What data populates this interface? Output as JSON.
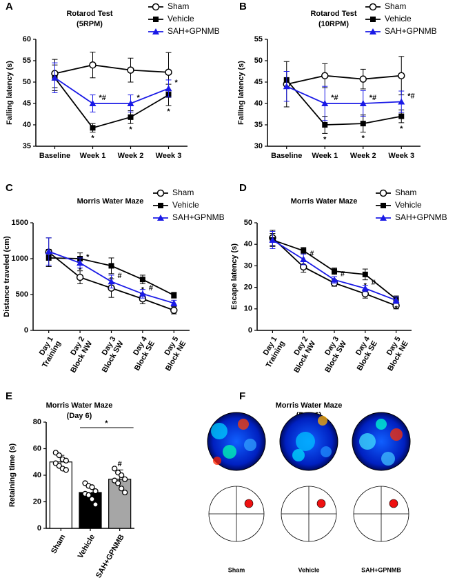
{
  "chart_data": [
    {
      "type": "line",
      "panel": "A",
      "title": "Rotarod Test",
      "subtitle": "(5RPM)",
      "y_label": "Falling latency (s)",
      "categories": [
        "Baseline",
        "Week 1",
        "Week 2",
        "Week 3"
      ],
      "ylim": [
        35,
        60
      ],
      "yticks": [
        35,
        40,
        45,
        50,
        55,
        60
      ],
      "legend": "top-right",
      "series": [
        {
          "name": "Sham",
          "color": "#000000",
          "marker": "circle-open",
          "values": [
            52,
            54,
            52.8,
            52.3
          ],
          "errors": [
            3.3,
            3,
            2.8,
            4.6
          ],
          "labels": [
            null,
            null,
            null,
            null
          ]
        },
        {
          "name": "Vehicle",
          "color": "#000000",
          "marker": "square",
          "values": [
            51,
            39.3,
            41.8,
            47
          ],
          "errors": [
            3,
            1,
            1.5,
            2.5
          ],
          "labels": [
            null,
            "*",
            "*",
            "*"
          ]
        },
        {
          "name": "SAH+GPNMB",
          "color": "#1a1ae6",
          "marker": "triangle",
          "values": [
            51,
            45,
            45,
            48.5
          ],
          "errors": [
            3.5,
            2,
            2,
            2
          ],
          "labels": [
            null,
            "*#",
            "*",
            "*"
          ]
        }
      ]
    },
    {
      "type": "line",
      "panel": "B",
      "title": "Rotarod Test",
      "subtitle": "(10RPM)",
      "y_label": "Falling latency (s)",
      "categories": [
        "Baseline",
        "Week 1",
        "Week 2",
        "Week 3"
      ],
      "ylim": [
        30,
        55
      ],
      "yticks": [
        30,
        35,
        40,
        45,
        50,
        55
      ],
      "legend": "top-right",
      "series": [
        {
          "name": "Sham",
          "color": "#000000",
          "marker": "circle-open",
          "values": [
            44.5,
            46.5,
            45.7,
            46.5
          ],
          "errors": [
            5.3,
            2.8,
            2.3,
            4.5
          ],
          "labels": [
            null,
            null,
            null,
            null
          ]
        },
        {
          "name": "Vehicle",
          "color": "#000000",
          "marker": "square",
          "values": [
            45.5,
            35,
            35.3,
            37
          ],
          "errors": [
            2,
            2,
            2,
            1.5
          ],
          "labels": [
            null,
            "*",
            "*",
            "*"
          ]
        },
        {
          "name": "SAH+GPNMB",
          "color": "#1a1ae6",
          "marker": "triangle",
          "values": [
            44,
            40,
            40,
            40.4
          ],
          "errors": [
            3.5,
            4,
            3,
            2.5
          ],
          "labels": [
            null,
            "*#",
            "*#",
            "*#"
          ]
        }
      ]
    },
    {
      "type": "line",
      "panel": "C",
      "title": "Morris Water Maze",
      "y_label": "Distance traveled (cm)",
      "categories": [
        "Day 1\nTraining",
        "Day 2\nBlock NW",
        "Day 3\nBlock SW",
        "Day 4\nBlock SE",
        "Day 5\nBlock NE"
      ],
      "ylim": [
        0,
        1500
      ],
      "yticks": [
        0,
        500,
        1000,
        1500
      ],
      "legend": "top-right",
      "series": [
        {
          "name": "Sham",
          "color": "#000000",
          "marker": "circle-open",
          "values": [
            1090,
            740,
            590,
            440,
            280
          ],
          "errors": [
            200,
            90,
            130,
            70,
            50
          ],
          "labels": [
            null,
            null,
            null,
            null,
            null
          ]
        },
        {
          "name": "Vehicle",
          "color": "#000000",
          "marker": "square",
          "values": [
            1010,
            1000,
            900,
            710,
            490
          ],
          "errors": [
            120,
            80,
            110,
            60,
            40
          ],
          "labels": [
            null,
            "*",
            "*",
            "*",
            "*"
          ]
        },
        {
          "name": "SAH+GPNMB",
          "color": "#1a1ae6",
          "marker": "triangle",
          "values": [
            1100,
            940,
            680,
            510,
            380
          ],
          "errors": [
            190,
            70,
            90,
            60,
            40
          ],
          "labels": [
            null,
            "*",
            "#",
            "#",
            null
          ]
        }
      ]
    },
    {
      "type": "line",
      "panel": "D",
      "title": "Morris Water Maze",
      "y_label": "Escape latency (s)",
      "categories": [
        "Day 1\nTraining",
        "Day 2\nBlock NW",
        "Day 3\nBlock SW",
        "Day 4\nBlock SE",
        "Day 5\nBlock NE"
      ],
      "ylim": [
        0,
        50
      ],
      "yticks": [
        0,
        10,
        20,
        30,
        40,
        50
      ],
      "legend": "top-right",
      "series": [
        {
          "name": "Sham",
          "color": "#000000",
          "marker": "circle-open",
          "values": [
            43,
            29.5,
            22,
            17,
            11.5
          ],
          "errors": [
            3.5,
            2.5,
            1.5,
            2,
            1.5
          ],
          "labels": [
            null,
            null,
            null,
            null,
            null
          ]
        },
        {
          "name": "Vehicle",
          "color": "#000000",
          "marker": "square",
          "values": [
            42,
            37,
            27.5,
            26,
            14.5
          ],
          "errors": [
            3,
            1.5,
            1.5,
            2.5,
            1.5
          ],
          "labels": [
            null,
            "*",
            "*",
            "*",
            "*"
          ]
        },
        {
          "name": "SAH+GPNMB",
          "color": "#1a1ae6",
          "marker": "triangle",
          "values": [
            42,
            33,
            23.5,
            19.5,
            14
          ],
          "errors": [
            4,
            2.5,
            1.5,
            1.5,
            1.5
          ],
          "labels": [
            null,
            "#",
            "#",
            "#",
            null
          ]
        }
      ]
    },
    {
      "type": "bar",
      "panel": "E",
      "title": "Morris Water Maze",
      "subtitle": "(Day 6)",
      "y_label": "Retaining time (s)",
      "categories": [
        "Sham",
        "Vehicle",
        "SAH+GPNMB"
      ],
      "colors": [
        "#ffffff",
        "#000000",
        "#a6a6a6"
      ],
      "values": [
        50,
        27,
        37
      ],
      "errors": [
        5,
        5,
        7
      ],
      "points": [
        [
          57,
          55,
          52,
          51,
          49,
          47,
          45,
          44
        ],
        [
          34,
          32,
          31,
          28,
          26,
          25,
          22,
          18
        ],
        [
          45,
          42,
          40,
          37,
          36,
          34,
          30,
          27
        ]
      ],
      "labels": [
        null,
        null,
        "#"
      ],
      "bracket_label": "*",
      "ylim": [
        0,
        80
      ],
      "yticks": [
        0,
        20,
        40,
        60,
        80
      ]
    }
  ],
  "panel_f": {
    "panel": "F",
    "title": "Morris Water Maze",
    "subtitle": "(Day 6)",
    "groups": [
      "Sham",
      "Vehicle",
      "SAH+GPNMB"
    ]
  }
}
